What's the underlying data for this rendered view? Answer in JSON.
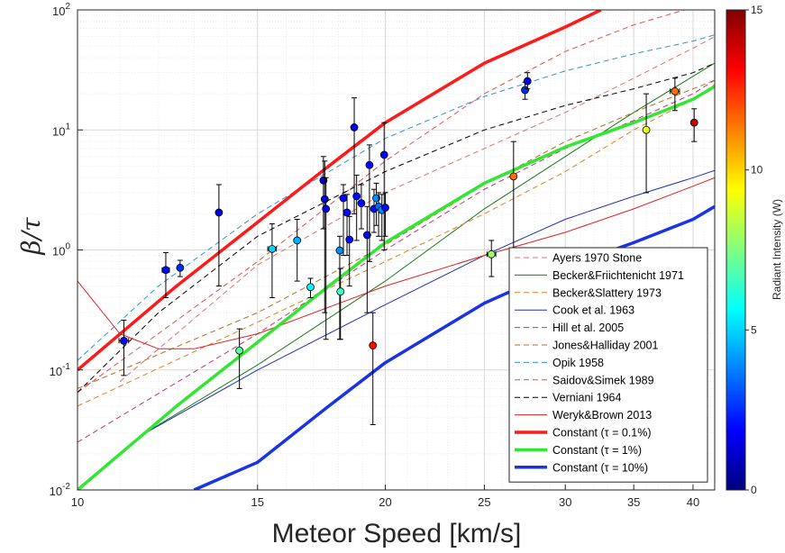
{
  "chart_data": {
    "type": "line",
    "xlabel": "Meteor Speed [km/s]",
    "ylabel": "β/τ",
    "xscale": "log",
    "yscale": "log",
    "xlim": [
      10,
      42
    ],
    "ylim": [
      0.01,
      100
    ],
    "x_ticks": [
      10,
      15,
      20,
      25,
      30,
      35,
      40
    ],
    "y_ticks": [
      {
        "value": 0.01,
        "base": "10",
        "exp": "-2"
      },
      {
        "value": 0.1,
        "base": "10",
        "exp": "-1"
      },
      {
        "value": 1,
        "base": "10",
        "exp": "0"
      },
      {
        "value": 10,
        "base": "10",
        "exp": "1"
      },
      {
        "value": 100,
        "base": "10",
        "exp": "2"
      }
    ],
    "grid": true,
    "legend_position": "bottom-right",
    "series": [
      {
        "name": "Ayers 1970 Stone",
        "color": "#e07070",
        "style": "dashed",
        "width": 1,
        "x": [
          11,
          15,
          20,
          25,
          30,
          35,
          40,
          42
        ],
        "y": [
          0.08,
          0.75,
          3.0,
          7,
          14,
          27,
          48,
          60
        ]
      },
      {
        "name": "Becker&Friichtenicht 1971",
        "color": "#1a7a1a",
        "style": "solid",
        "width": 1,
        "x": [
          11.5,
          15,
          20,
          25,
          30,
          35,
          40,
          42
        ],
        "y": [
          0.028,
          0.11,
          0.55,
          2.2,
          6,
          14,
          28,
          36
        ]
      },
      {
        "name": "Becker&Slattery 1973",
        "color": "#e08020",
        "style": "dashed",
        "width": 1,
        "x": [
          10,
          15,
          20,
          25,
          30,
          35,
          40,
          42
        ],
        "y": [
          0.05,
          0.25,
          0.8,
          2.0,
          4.5,
          10,
          18,
          24
        ]
      },
      {
        "name": "Cook et al. 1963",
        "color": "#2030b0",
        "style": "solid",
        "width": 1,
        "x": [
          11.5,
          15,
          20,
          25,
          30,
          35,
          40,
          42
        ],
        "y": [
          0.028,
          0.1,
          0.35,
          0.9,
          1.8,
          2.8,
          4.0,
          4.6
        ]
      },
      {
        "name": "Hill et al. 2005",
        "color": "#c03080",
        "style": "dashed",
        "width": 1,
        "x": [
          10,
          15,
          20,
          25,
          30,
          35,
          40,
          42
        ],
        "y": [
          0.025,
          0.2,
          1.0,
          3.2,
          7,
          12,
          20,
          26
        ]
      },
      {
        "name": "Jones&Halliday 2001",
        "color": "#b07020",
        "style": "dashed",
        "width": 1,
        "x": [
          10,
          15,
          20,
          25,
          30,
          35,
          40,
          42
        ],
        "y": [
          0.07,
          0.3,
          1.1,
          3.5,
          8,
          14,
          22,
          26
        ]
      },
      {
        "name": "Opik 1958",
        "color": "#3090e0",
        "style": "dashed",
        "width": 1,
        "x": [
          10,
          12,
          15,
          20,
          25,
          30,
          35,
          40,
          42
        ],
        "y": [
          0.12,
          0.5,
          2.0,
          8.5,
          19,
          31,
          43,
          55,
          62
        ]
      },
      {
        "name": "Saidov&Simek 1989",
        "color": "#e05050",
        "style": "dashed",
        "width": 1,
        "x": [
          10,
          15,
          20,
          25,
          30,
          35,
          40,
          42
        ],
        "y": [
          0.065,
          0.8,
          5.5,
          20,
          45,
          75,
          105,
          120
        ]
      },
      {
        "name": "Verniani 1964",
        "color": "#000000",
        "style": "dashed",
        "width": 1,
        "x": [
          10,
          12,
          15,
          20,
          25,
          30,
          35,
          40,
          42
        ],
        "y": [
          0.065,
          0.3,
          1.3,
          4.5,
          10,
          16,
          22,
          30,
          36
        ]
      },
      {
        "name": "Weryk&Brown 2013",
        "color": "#e02020",
        "style": "solid",
        "width": 1,
        "x": [
          10,
          11,
          12,
          13,
          15,
          20,
          25,
          30,
          35,
          40,
          42
        ],
        "y": [
          0.55,
          0.2,
          0.15,
          0.15,
          0.2,
          0.5,
          0.9,
          1.4,
          2.2,
          3.4,
          4.0
        ]
      },
      {
        "name": "Constant (τ = 0.1%)",
        "color": "#ff1a1a",
        "style": "solid",
        "width": 3.5,
        "x": [
          10,
          12.5,
          15,
          17.5,
          20,
          25,
          30,
          32.5
        ],
        "y": [
          0.1,
          0.5,
          1.7,
          4.8,
          11.5,
          36,
          72,
          100
        ]
      },
      {
        "name": "Constant (τ = 1%)",
        "color": "#33e633",
        "style": "solid",
        "width": 3.5,
        "x": [
          10,
          12.5,
          15,
          17.5,
          20,
          25,
          30,
          35,
          40,
          42
        ],
        "y": [
          0.01,
          0.05,
          0.17,
          0.48,
          1.15,
          3.6,
          7.2,
          11.5,
          18,
          23
        ]
      },
      {
        "name": "Constant (τ = 10%)",
        "color": "#1a33e6",
        "style": "solid",
        "width": 3.5,
        "x": [
          13,
          15,
          17.5,
          20,
          25,
          30,
          35,
          40,
          42
        ],
        "y": [
          0.01,
          0.017,
          0.048,
          0.115,
          0.36,
          0.72,
          1.15,
          1.8,
          2.3
        ]
      }
    ],
    "scatter": [
      {
        "x": 11.1,
        "y": 0.175,
        "err_lo": 0.09,
        "err_hi": 0.26,
        "xerr": 0.12,
        "c": 2
      },
      {
        "x": 12.2,
        "y": 0.68,
        "err_lo": 0.4,
        "err_hi": 0.95,
        "xerr": 0.1,
        "c": 2
      },
      {
        "x": 12.6,
        "y": 0.71,
        "err_lo": 0.6,
        "err_hi": 0.82,
        "xerr": 0,
        "c": 2.5
      },
      {
        "x": 13.75,
        "y": 2.05,
        "err_lo": 0.5,
        "err_hi": 3.5,
        "xerr": 0,
        "c": 1.5
      },
      {
        "x": 14.4,
        "y": 0.145,
        "err_lo": 0.07,
        "err_hi": 0.22,
        "xerr": 0,
        "c": 7
      },
      {
        "x": 15.5,
        "y": 1.02,
        "err_lo": 0.4,
        "err_hi": 1.65,
        "xerr": 0.15,
        "c": 5
      },
      {
        "x": 16.4,
        "y": 1.2,
        "err_lo": 0.55,
        "err_hi": 1.8,
        "xerr": 0,
        "c": 4.5
      },
      {
        "x": 16.9,
        "y": 0.49,
        "err_lo": 0.4,
        "err_hi": 0.58,
        "xerr": 0,
        "c": 5.5
      },
      {
        "x": 17.4,
        "y": 3.8,
        "err_lo": 1.5,
        "err_hi": 6.0,
        "xerr": 0,
        "c": 1.5
      },
      {
        "x": 17.45,
        "y": 2.65,
        "err_lo": 0.3,
        "err_hi": 5.5,
        "xerr": 0,
        "c": 1.5
      },
      {
        "x": 17.5,
        "y": 2.2,
        "err_lo": 0.18,
        "err_hi": 4.0,
        "xerr": 0,
        "c": 1.5
      },
      {
        "x": 18.05,
        "y": 0.99,
        "err_lo": 0.18,
        "err_hi": 1.3,
        "xerr": 0,
        "c": 4
      },
      {
        "x": 18.08,
        "y": 0.45,
        "err_lo": 0.18,
        "err_hi": 0.7,
        "xerr": 0,
        "c": 6.5
      },
      {
        "x": 18.2,
        "y": 2.7,
        "err_lo": 0.9,
        "err_hi": 3.5,
        "xerr": 0,
        "c": 2
      },
      {
        "x": 18.35,
        "y": 2.05,
        "err_lo": 0.9,
        "err_hi": 2.9,
        "xerr": 0,
        "c": 2
      },
      {
        "x": 18.45,
        "y": 1.22,
        "err_lo": 0.5,
        "err_hi": 1.9,
        "xerr": 0,
        "c": 2
      },
      {
        "x": 18.65,
        "y": 10.5,
        "err_lo": 2.0,
        "err_hi": 18.5,
        "xerr": 0,
        "c": 1.5
      },
      {
        "x": 18.75,
        "y": 2.8,
        "err_lo": 1.2,
        "err_hi": 4.2,
        "xerr": 0,
        "c": 2
      },
      {
        "x": 18.95,
        "y": 2.45,
        "err_lo": 1.5,
        "err_hi": 3.5,
        "xerr": 0,
        "c": 2
      },
      {
        "x": 19.2,
        "y": 1.33,
        "err_lo": 0.3,
        "err_hi": 2.3,
        "xerr": 0,
        "c": 2
      },
      {
        "x": 19.3,
        "y": 5.1,
        "err_lo": 0.8,
        "err_hi": 7.5,
        "xerr": 0,
        "c": 2
      },
      {
        "x": 19.45,
        "y": 0.16,
        "err_lo": 0.035,
        "err_hi": 0.3,
        "xerr": 0,
        "c": 13
      },
      {
        "x": 19.5,
        "y": 2.2,
        "err_lo": 1.4,
        "err_hi": 3.2,
        "xerr": 0,
        "c": 2
      },
      {
        "x": 19.6,
        "y": 2.7,
        "err_lo": 1.6,
        "err_hi": 3.6,
        "xerr": 0.1,
        "c": 4
      },
      {
        "x": 19.7,
        "y": 2.3,
        "err_lo": 1.3,
        "err_hi": 3.0,
        "xerr": 0,
        "c": 3.5
      },
      {
        "x": 19.85,
        "y": 2.15,
        "err_lo": 1.2,
        "err_hi": 2.9,
        "xerr": 0,
        "c": 4
      },
      {
        "x": 19.95,
        "y": 6.2,
        "err_lo": 1.0,
        "err_hi": 11.5,
        "xerr": 0,
        "c": 2
      },
      {
        "x": 20.0,
        "y": 2.25,
        "err_lo": 1.3,
        "err_hi": 3.0,
        "xerr": 0,
        "c": 2
      },
      {
        "x": 25.4,
        "y": 0.92,
        "err_lo": 0.6,
        "err_hi": 1.2,
        "xerr": 0.25,
        "c": 8
      },
      {
        "x": 26.7,
        "y": 4.1,
        "err_lo": 0.18,
        "err_hi": 8.0,
        "xerr": 0,
        "c": 11.5
      },
      {
        "x": 27.4,
        "y": 21.5,
        "err_lo": 18,
        "err_hi": 25,
        "xerr": 0,
        "c": 2.5
      },
      {
        "x": 27.55,
        "y": 25.5,
        "err_lo": 22,
        "err_hi": 30,
        "xerr": 0,
        "c": 1.5
      },
      {
        "x": 36.0,
        "y": 10.0,
        "err_lo": 3.0,
        "err_hi": 20,
        "xerr": 0,
        "c": 9
      },
      {
        "x": 38.4,
        "y": 21,
        "err_lo": 14.5,
        "err_hi": 27,
        "xerr": 0.4,
        "c": 11.5
      },
      {
        "x": 40.1,
        "y": 11.5,
        "err_lo": 8,
        "err_hi": 15,
        "xerr": 0,
        "c": 14
      }
    ],
    "colorbar": {
      "label": "Radiant Intensity (W)",
      "min": 0,
      "max": 15,
      "ticks": [
        0,
        5,
        10,
        15
      ],
      "colormap": "jet"
    }
  }
}
